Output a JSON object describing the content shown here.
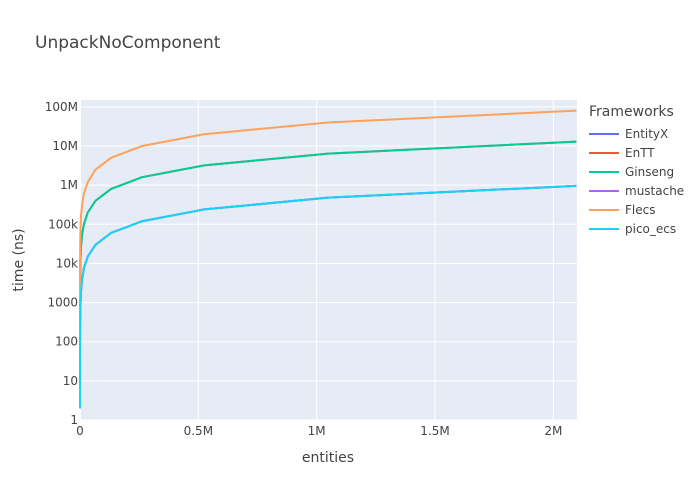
{
  "chart_data": {
    "type": "line",
    "title": "UnpackNoComponent",
    "xlabel": "entities",
    "ylabel": "time (ns)",
    "xlim": [
      0,
      2100000
    ],
    "ylim": [
      1,
      150000000
    ],
    "yscale": "log",
    "grid": true,
    "legend_title": "Frameworks",
    "legend_position": "right",
    "x_tick_labels": [
      "0",
      "0.5M",
      "1M",
      "1.5M",
      "2M"
    ],
    "x_ticks": [
      0,
      500000,
      1000000,
      1500000,
      2000000
    ],
    "y_tick_labels": [
      "1",
      "10",
      "100",
      "1000",
      "10k",
      "100k",
      "1M",
      "10M",
      "100M"
    ],
    "y_ticks": [
      1,
      10,
      100,
      1000,
      10000,
      100000,
      1000000,
      10000000,
      100000000
    ],
    "x": [
      1,
      8,
      16,
      32,
      64,
      128,
      256,
      512,
      1024,
      2048,
      4096,
      8192,
      16384,
      32768,
      65536,
      131072,
      262144,
      524288,
      1048576,
      2097152
    ],
    "series": [
      {
        "name": "EntityX",
        "color": "#636efa",
        "values": [
          2,
          4,
          8,
          15,
          30,
          60,
          120,
          240,
          480,
          950,
          1900,
          3700,
          7500,
          15000,
          30000,
          60000,
          120000,
          240000,
          480000,
          960000
        ]
      },
      {
        "name": "EnTT",
        "color": "#ef553b",
        "values": [
          10,
          50,
          100,
          200,
          400,
          800,
          1600,
          3200,
          6500,
          13000,
          26000,
          52000,
          100000,
          200000,
          400000,
          800000,
          1600000,
          3200000,
          6400000,
          13000000
        ]
      },
      {
        "name": "Ginseng",
        "color": "#00cc96",
        "values": [
          10,
          50,
          100,
          200,
          400,
          800,
          1600,
          3200,
          6500,
          13000,
          26000,
          52000,
          100000,
          200000,
          400000,
          800000,
          1600000,
          3200000,
          6400000,
          13000000
        ]
      },
      {
        "name": "mustache",
        "color": "#ab63fa",
        "values": [
          2,
          4,
          8,
          15,
          30,
          60,
          120,
          240,
          480,
          950,
          1900,
          3700,
          7500,
          15000,
          30000,
          60000,
          120000,
          240000,
          480000,
          960000
        ]
      },
      {
        "name": "Flecs",
        "color": "#ffa15a",
        "values": [
          30,
          300,
          600,
          1200,
          2500,
          5000,
          10000,
          20000,
          40000,
          80000,
          160000,
          300000,
          600000,
          1200000,
          2500000,
          5000000,
          10000000,
          20000000,
          40000000,
          80000000
        ]
      },
      {
        "name": "pico_ecs",
        "color": "#19d3f3",
        "values": [
          2,
          4,
          8,
          15,
          30,
          60,
          120,
          240,
          480,
          950,
          1900,
          3700,
          7500,
          15000,
          30000,
          60000,
          120000,
          240000,
          480000,
          960000
        ]
      }
    ]
  }
}
